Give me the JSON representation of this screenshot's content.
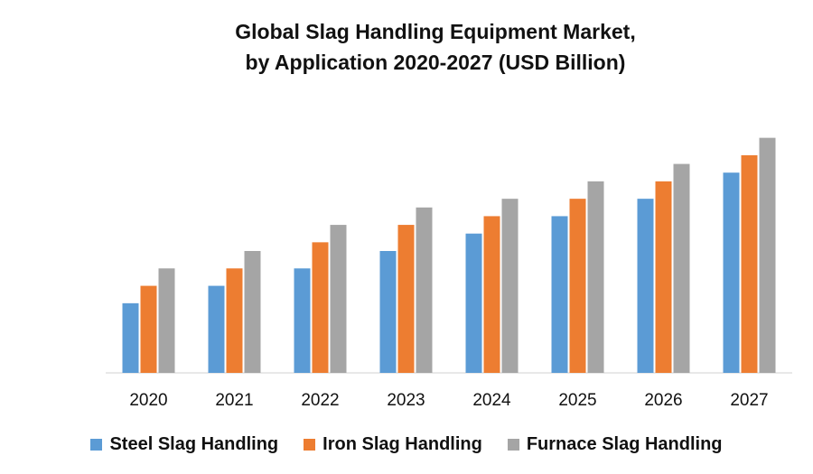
{
  "chart_data": {
    "type": "bar",
    "title": "Global Slag Handling Equipment Market,",
    "subtitle": "by Application  2020-2027  (USD Billion)",
    "categories": [
      "2020",
      "2021",
      "2022",
      "2023",
      "2024",
      "2025",
      "2026",
      "2027"
    ],
    "series": [
      {
        "name": "Steel Slag Handling",
        "color": "#5B9BD5",
        "values": [
          4,
          5,
          6,
          7,
          8,
          9,
          10,
          11.5
        ]
      },
      {
        "name": "Iron Slag Handling",
        "color": "#ED7D31",
        "values": [
          5,
          6,
          7.5,
          8.5,
          9,
          10,
          11,
          12.5
        ]
      },
      {
        "name": "Furnace Slag Handling",
        "color": "#A5A5A5",
        "values": [
          6,
          7,
          8.5,
          9.5,
          10,
          11,
          12,
          13.5
        ]
      }
    ],
    "ylim": [
      0,
      14
    ],
    "grid": false,
    "legend_position": "bottom",
    "xlabel": "",
    "ylabel": ""
  }
}
